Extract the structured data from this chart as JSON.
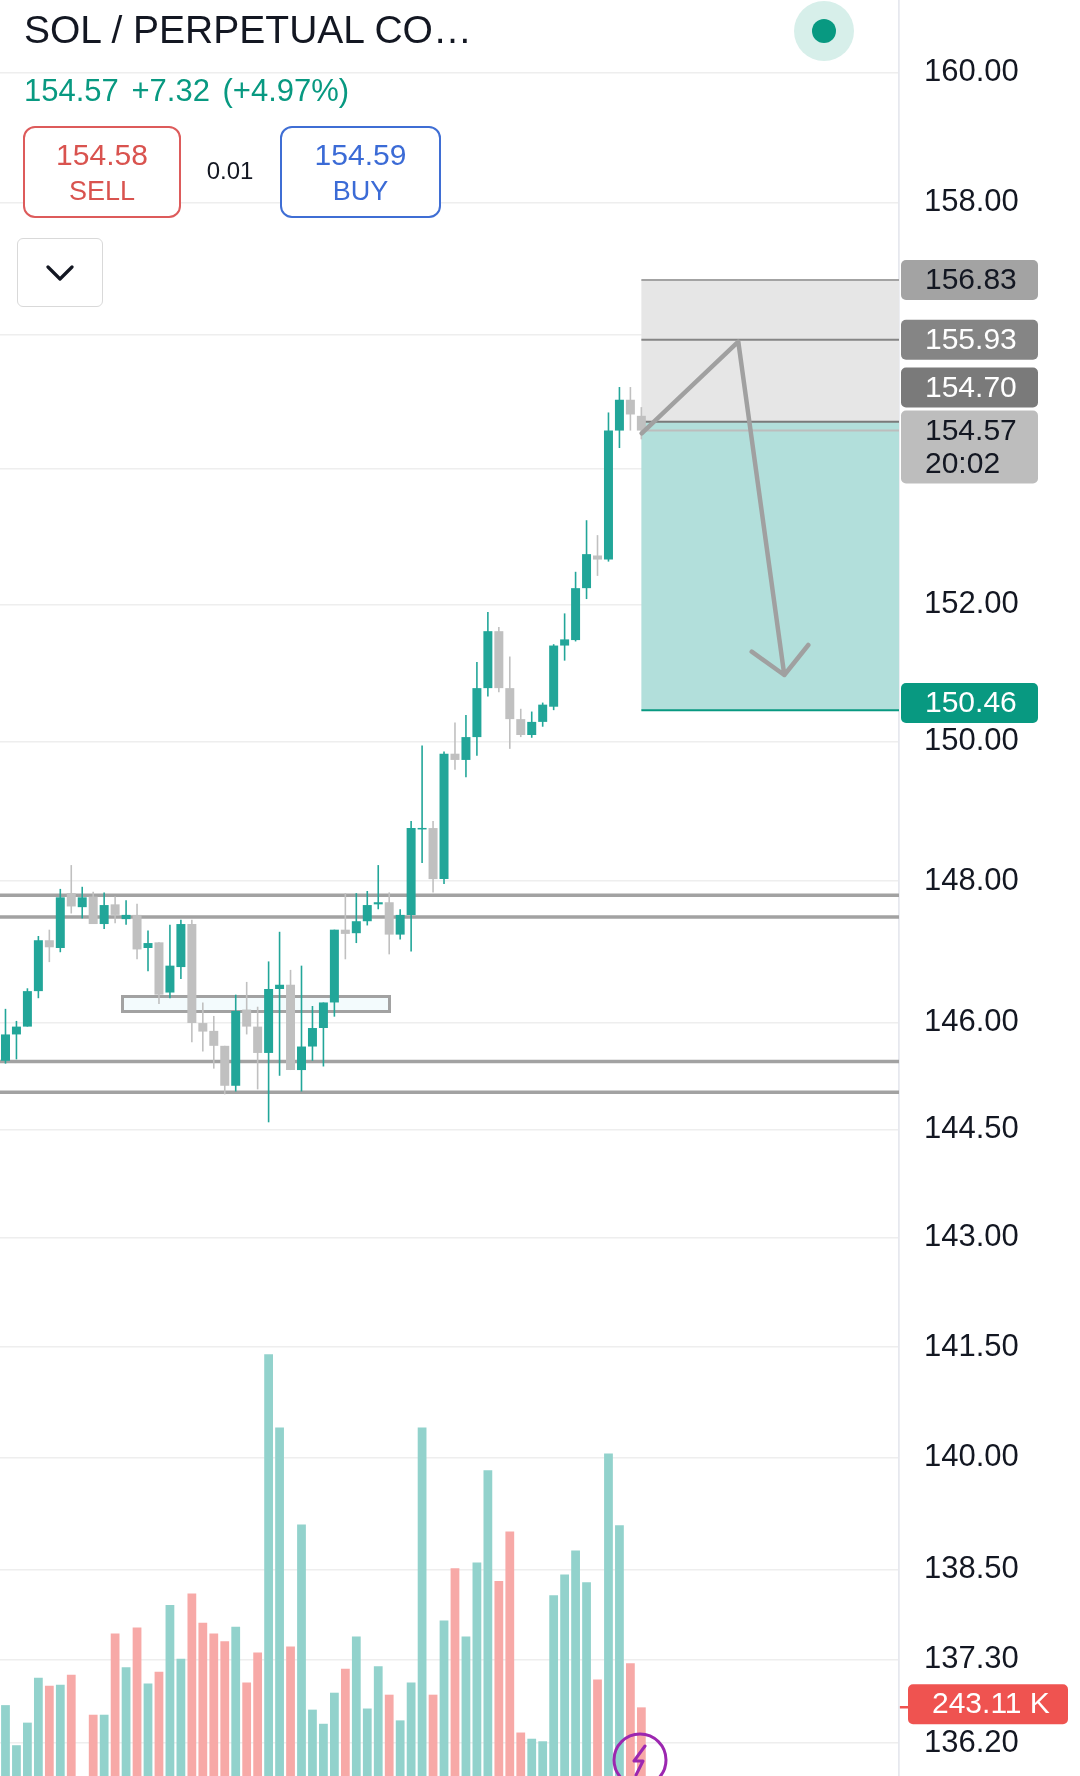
{
  "chart_data": {
    "type": "candlestick",
    "title": "SOL / PERPETUAL CO…",
    "categories": [
      null,
      null,
      null,
      null,
      null,
      null,
      null,
      null,
      null,
      null,
      null,
      null,
      null,
      null,
      null,
      null,
      null,
      null,
      null,
      null,
      null,
      null,
      null,
      null,
      null,
      null,
      null,
      null,
      null,
      null,
      null,
      null,
      null,
      null,
      null,
      null,
      null,
      null,
      null,
      null,
      null,
      null,
      null,
      null,
      null,
      null,
      null,
      null,
      null,
      null,
      null,
      null,
      null,
      null,
      null,
      null,
      null,
      null,
      null,
      null,
      null,
      null,
      null,
      null,
      null,
      null,
      null,
      null,
      null,
      null,
      null,
      null,
      null,
      null,
      null,
      null,
      null,
      null,
      null,
      null,
      null,
      null
    ],
    "series": [
      {
        "ohlc": [
          [
            145.46,
            146.19,
            145.42,
            145.83
          ],
          [
            145.83,
            146.02,
            145.48,
            145.94
          ],
          [
            145.94,
            146.48,
            145.94,
            146.44
          ],
          [
            146.44,
            147.22,
            146.34,
            147.16
          ],
          [
            147.16,
            147.31,
            146.85,
            147.06
          ],
          [
            147.05,
            147.89,
            146.99,
            147.77
          ],
          [
            147.83,
            148.23,
            147.54,
            147.64
          ],
          [
            147.63,
            147.92,
            147.47,
            147.77
          ],
          [
            147.78,
            147.85,
            147.39,
            147.39
          ],
          [
            147.39,
            147.84,
            147.32,
            147.66
          ],
          [
            147.67,
            147.78,
            147.4,
            147.52
          ],
          [
            147.46,
            147.73,
            147.38,
            147.52
          ],
          [
            147.52,
            147.68,
            146.89,
            147.03
          ],
          [
            147.05,
            147.3,
            146.72,
            147.12
          ],
          [
            147.13,
            147.13,
            146.26,
            146.39
          ],
          [
            146.42,
            147.38,
            146.34,
            146.8
          ],
          [
            146.78,
            147.45,
            146.61,
            147.39
          ],
          [
            147.39,
            147.45,
            145.72,
            145.99
          ],
          [
            145.99,
            146.28,
            145.59,
            145.87
          ],
          [
            145.88,
            146.09,
            145.35,
            145.67
          ],
          [
            145.67,
            145.67,
            144.99,
            145.11
          ],
          [
            145.11,
            146.39,
            145.03,
            146.16
          ],
          [
            146.18,
            146.57,
            145.83,
            145.94
          ],
          [
            145.94,
            146.22,
            145.06,
            145.57
          ],
          [
            145.57,
            146.86,
            144.6,
            146.47
          ],
          [
            146.47,
            147.28,
            145.25,
            146.53
          ],
          [
            146.53,
            146.74,
            145.33,
            145.33
          ],
          [
            145.33,
            146.8,
            145.03,
            145.66
          ],
          [
            145.66,
            146.23,
            145.46,
            145.92
          ],
          [
            145.92,
            146.28,
            145.38,
            146.28
          ],
          [
            146.28,
            147.31,
            146.08,
            147.31
          ],
          [
            147.31,
            147.83,
            146.89,
            147.25
          ],
          [
            147.26,
            147.83,
            147.12,
            147.43
          ],
          [
            147.43,
            147.86,
            147.37,
            147.66
          ],
          [
            147.67,
            148.23,
            147.6,
            147.7
          ],
          [
            147.7,
            147.84,
            146.96,
            147.24
          ],
          [
            147.24,
            147.6,
            147.17,
            147.52
          ],
          [
            147.52,
            148.86,
            147.0,
            148.76
          ],
          [
            148.74,
            149.95,
            148.26,
            148.76
          ],
          [
            148.76,
            148.86,
            147.84,
            148.03
          ],
          [
            148.03,
            149.86,
            147.96,
            149.83
          ],
          [
            149.83,
            150.28,
            149.6,
            149.74
          ],
          [
            149.74,
            150.39,
            149.49,
            150.07
          ],
          [
            150.07,
            151.16,
            149.8,
            150.78
          ],
          [
            150.78,
            151.89,
            150.66,
            151.61
          ],
          [
            151.61,
            151.67,
            150.72,
            150.78
          ],
          [
            150.78,
            151.24,
            149.9,
            150.33
          ],
          [
            150.33,
            150.48,
            150.07,
            150.1
          ],
          [
            150.1,
            150.44,
            150.06,
            150.29
          ],
          [
            150.29,
            150.57,
            150.22,
            150.54
          ],
          [
            150.51,
            151.42,
            150.46,
            151.4
          ],
          [
            151.4,
            151.87,
            151.18,
            151.49
          ],
          [
            151.48,
            152.48,
            151.46,
            152.24
          ],
          [
            152.24,
            153.24,
            152.08,
            152.74
          ],
          [
            152.72,
            153.02,
            152.42,
            152.66
          ],
          [
            152.66,
            154.84,
            152.63,
            154.57
          ],
          [
            154.57,
            155.22,
            154.31,
            155.03
          ],
          [
            155.03,
            155.22,
            154.57,
            154.81
          ],
          [
            154.79,
            154.92,
            154.44,
            154.57
          ],
          null,
          null,
          null,
          null,
          null,
          null,
          null,
          null,
          null,
          null,
          null,
          null,
          null,
          null,
          null,
          null,
          null,
          null,
          null,
          null,
          null,
          null,
          null
        ],
        "colors": [
          "#22a699",
          "#22a699",
          "#22a699",
          "#22a699",
          "#c0c0c0",
          "#22a699",
          "#c0c0c0",
          "#22a699",
          "#c0c0c0",
          "#22a699",
          "#c0c0c0",
          "#22a699",
          "#c0c0c0",
          "#22a699",
          "#c0c0c0",
          "#22a699",
          "#22a699",
          "#c0c0c0",
          "#c0c0c0",
          "#c0c0c0",
          "#c0c0c0",
          "#22a699",
          "#c0c0c0",
          "#c0c0c0",
          "#22a699",
          "#22a699",
          "#c0c0c0",
          "#22a699",
          "#22a699",
          "#22a699",
          "#22a699",
          "#c0c0c0",
          "#22a699",
          "#22a699",
          "#22a699",
          "#c0c0c0",
          "#22a699",
          "#22a699",
          "#22a699",
          "#c0c0c0",
          "#22a699",
          "#c0c0c0",
          "#22a699",
          "#22a699",
          "#22a699",
          "#c0c0c0",
          "#c0c0c0",
          "#c0c0c0",
          "#22a699",
          "#22a699",
          "#22a699",
          "#22a699",
          "#22a699",
          "#22a699",
          "#c0c0c0",
          "#22a699",
          "#22a699",
          "#c0c0c0",
          "#c0c0c0",
          null,
          null,
          null,
          null,
          null,
          null,
          null,
          null,
          null,
          null,
          null,
          null,
          null,
          null,
          null,
          null,
          null,
          null,
          null,
          null,
          null,
          null,
          null
        ]
      },
      {
        "type": "bar",
        "axis": "y2",
        "values": [
          251,
          109,
          189,
          348,
          320,
          323,
          359,
          null,
          217,
          217,
          505,
          385,
          526,
          328,
          369,
          606,
          415,
          646,
          543,
          505,
          477,
          529,
          331,
          437,
          1494,
          1234,
          459,
          891,
          235,
          185,
          295,
          380,
          494,
          239,
          389,
          288,
          197,
          331,
          1234,
          288,
          551,
          736,
          494,
          756,
          1083,
          691,
          866,
          154,
          132,
          123,
          640,
          714,
          799,
          686,
          342,
          1142,
          888,
          399,
          243.11,
          null,
          null,
          null,
          null,
          null,
          null,
          null,
          null,
          null,
          null,
          null,
          null,
          null,
          null,
          null,
          null,
          null,
          null,
          null,
          null,
          null,
          null,
          null
        ],
        "colors": [
          "#92d2cc",
          "#92d2cc",
          "#92d2cc",
          "#92d2cc",
          "#f7a9a7",
          "#92d2cc",
          "#f7a9a7",
          "#92d2cc",
          "#f7a9a7",
          "#92d2cc",
          "#f7a9a7",
          "#92d2cc",
          "#f7a9a7",
          "#92d2cc",
          "#f7a9a7",
          "#92d2cc",
          "#92d2cc",
          "#f7a9a7",
          "#f7a9a7",
          "#f7a9a7",
          "#f7a9a7",
          "#92d2cc",
          "#f7a9a7",
          "#f7a9a7",
          "#92d2cc",
          "#92d2cc",
          "#f7a9a7",
          "#92d2cc",
          "#92d2cc",
          "#92d2cc",
          "#92d2cc",
          "#f7a9a7",
          "#92d2cc",
          "#92d2cc",
          "#92d2cc",
          "#f7a9a7",
          "#92d2cc",
          "#92d2cc",
          "#92d2cc",
          "#f7a9a7",
          "#92d2cc",
          "#f7a9a7",
          "#92d2cc",
          "#92d2cc",
          "#92d2cc",
          "#f7a9a7",
          "#f7a9a7",
          "#f7a9a7",
          "#92d2cc",
          "#92d2cc",
          "#92d2cc",
          "#92d2cc",
          "#92d2cc",
          "#92d2cc",
          "#f7a9a7",
          "#92d2cc",
          "#92d2cc",
          "#f7a9a7",
          "#f7a9a7",
          null,
          null,
          null,
          null,
          null,
          null,
          null,
          null,
          null,
          null,
          null,
          null,
          null,
          null,
          null,
          null,
          null,
          null,
          null,
          null,
          null,
          null,
          null
        ]
      }
    ],
    "log": "y",
    "ylim": [
      135.77,
      161.12
    ],
    "yticks": [
      {
        "value": 160,
        "label": "160.00"
      },
      {
        "value": 158,
        "label": "158.00"
      },
      {
        "value": 156,
        "label": null
      },
      {
        "value": 154,
        "label": null
      },
      {
        "value": 152,
        "label": "152.00"
      },
      {
        "value": 150,
        "label": "150.00"
      },
      {
        "value": 148,
        "label": "148.00"
      },
      {
        "value": 146,
        "label": "146.00"
      },
      {
        "value": 144.5,
        "label": "144.50"
      },
      {
        "value": 143,
        "label": "143.00"
      },
      {
        "value": 141.5,
        "label": "141.50"
      },
      {
        "value": 140,
        "label": "140.00"
      },
      {
        "value": 138.5,
        "label": "138.50"
      },
      {
        "value": 137.3,
        "label": "137.30"
      },
      {
        "value": 136.2,
        "label": "136.20"
      }
    ],
    "y2lim": [
      0,
      6290
    ],
    "y2ticks": [
      {
        "value": 243.11,
        "label": "243.11 K"
      }
    ],
    "grid": "y",
    "bands": [
      {
        "axis": "y",
        "from": 154.7,
        "to": 156.83,
        "color": "#e6e6e6"
      },
      {
        "axis": "y",
        "from": 150.46,
        "to": 154.7,
        "color": "#b2dfdb"
      }
    ],
    "ref_lines": [
      {
        "axis": "y",
        "value": 156.83,
        "label": "156.83",
        "color": "#a3a3a3",
        "line_style": "solid"
      },
      {
        "axis": "y",
        "value": 155.93,
        "label": "155.93",
        "color": "#858585",
        "line_style": "solid"
      },
      {
        "axis": "y",
        "value": 154.7,
        "label": "154.70",
        "color": "#7a7a7a",
        "line_style": "solid"
      },
      {
        "axis": "y",
        "value": 154.57,
        "label": "154.57\n20:02",
        "color": "#bdbdbd",
        "line_style": "solid"
      },
      {
        "axis": "y",
        "value": 150.46,
        "label": "150.46",
        "color": "#089981",
        "line_style": "solid"
      },
      {
        "axis": "y",
        "value": 147.8,
        "color": "#a2a2a2",
        "line_style": "solid"
      },
      {
        "axis": "y",
        "value": 147.49,
        "color": "#a2a2a2",
        "line_style": "solid"
      },
      {
        "axis": "y",
        "value": 145.45,
        "color": "#a2a2a2",
        "line_style": "solid"
      },
      {
        "axis": "y",
        "value": 145.02,
        "color": "#a2a2a2",
        "line_style": "solid"
      }
    ],
    "annotations": [
      "154.57 +7.32 (+4.97%)",
      "154.58",
      "SELL",
      "0.01",
      "154.59",
      "BUY"
    ]
  }
}
